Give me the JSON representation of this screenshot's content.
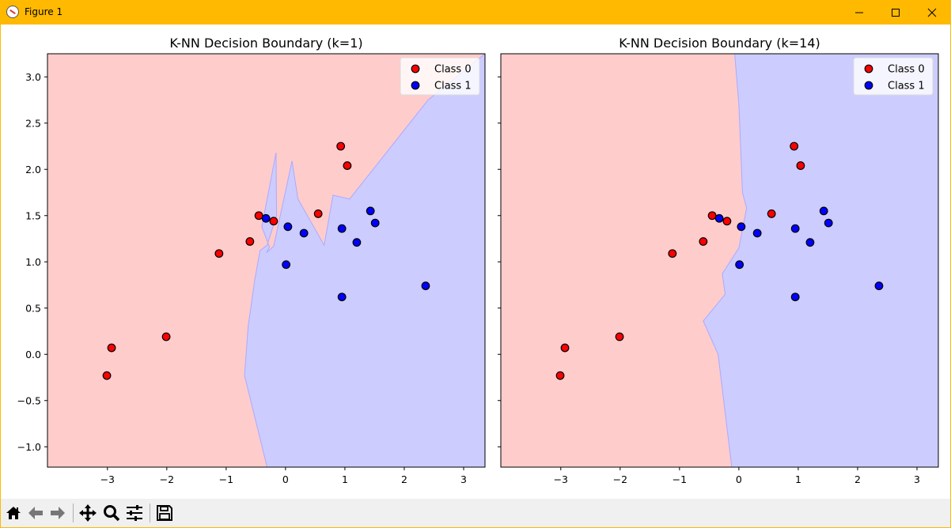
{
  "window": {
    "title": "Figure 1",
    "icon": "matplotlib-icon",
    "controls": [
      "minimize-icon",
      "maximize-icon",
      "close-icon"
    ]
  },
  "toolbar": {
    "buttons": [
      {
        "name": "home",
        "icon": "home-icon"
      },
      {
        "name": "back",
        "icon": "back-arrow-icon"
      },
      {
        "name": "forward",
        "icon": "forward-arrow-icon"
      },
      {
        "name": "pan",
        "icon": "move-icon"
      },
      {
        "name": "zoom",
        "icon": "magnifier-icon"
      },
      {
        "name": "configure-subplots",
        "icon": "sliders-icon"
      },
      {
        "name": "save",
        "icon": "floppy-disk-icon"
      }
    ]
  },
  "colors": {
    "class0_region": "#ffcccc",
    "class1_region": "#ccccff",
    "class0_point": "#ff0000",
    "class1_point": "#0000ff",
    "window_accent": "#ffb900"
  },
  "chart_data": [
    {
      "type": "scatter",
      "title": "K-NN Decision Boundary (k=1)",
      "xlabel": "",
      "ylabel": "",
      "xlim": [
        -4.01,
        3.36
      ],
      "ylim": [
        -1.22,
        3.25
      ],
      "xticks": [
        -3,
        -2,
        -1,
        0,
        1,
        2,
        3
      ],
      "xtick_labels": [
        "−3",
        "−2",
        "−1",
        "0",
        "1",
        "2",
        "3"
      ],
      "yticks": [
        -1.0,
        -0.5,
        0.0,
        0.5,
        1.0,
        1.5,
        2.0,
        2.5,
        3.0
      ],
      "ytick_labels": [
        "−1.0",
        "−0.5",
        "0.0",
        "0.5",
        "1.0",
        "1.5",
        "2.0",
        "2.5",
        "3.0"
      ],
      "grid": false,
      "legend": {
        "position": "top-right",
        "entries": [
          "Class 0",
          "Class 1"
        ]
      },
      "series": [
        {
          "name": "Class 0",
          "points": [
            [
              -3.01,
              -0.23
            ],
            [
              -2.93,
              0.07
            ],
            [
              -2.01,
              0.19
            ],
            [
              -1.12,
              1.09
            ],
            [
              -0.6,
              1.22
            ],
            [
              -0.45,
              1.5
            ],
            [
              -0.2,
              1.44
            ],
            [
              0.55,
              1.52
            ],
            [
              0.93,
              2.25
            ],
            [
              1.04,
              2.04
            ]
          ]
        },
        {
          "name": "Class 1",
          "points": [
            [
              -0.33,
              1.47
            ],
            [
              0.04,
              1.38
            ],
            [
              0.31,
              1.31
            ],
            [
              0.01,
              0.97
            ],
            [
              0.95,
              1.36
            ],
            [
              1.2,
              1.21
            ],
            [
              1.43,
              1.55
            ],
            [
              1.51,
              1.42
            ],
            [
              0.95,
              0.62
            ],
            [
              2.36,
              0.74
            ]
          ]
        }
      ],
      "class1_region": [
        [
          -0.31,
          -1.22
        ],
        [
          -0.69,
          -0.23
        ],
        [
          -0.63,
          0.3
        ],
        [
          -0.52,
          0.8
        ],
        [
          -0.43,
          1.12
        ],
        [
          -0.31,
          1.18
        ],
        [
          -0.15,
          1.5
        ],
        [
          -0.16,
          2.18
        ],
        [
          -0.4,
          1.38
        ],
        [
          -0.27,
          1.16
        ],
        [
          -0.32,
          1.1
        ],
        [
          -0.2,
          1.17
        ],
        [
          0.11,
          2.09
        ],
        [
          0.21,
          1.68
        ],
        [
          0.65,
          1.18
        ],
        [
          0.8,
          1.72
        ],
        [
          1.08,
          1.68
        ],
        [
          2.4,
          2.75
        ],
        [
          3.36,
          3.25
        ],
        [
          3.36,
          -1.22
        ]
      ]
    },
    {
      "type": "scatter",
      "title": "K-NN Decision Boundary (k=14)",
      "xlabel": "",
      "ylabel": "",
      "xlim": [
        -4.01,
        3.36
      ],
      "ylim": [
        -1.22,
        3.25
      ],
      "xticks": [
        -3,
        -2,
        -1,
        0,
        1,
        2,
        3
      ],
      "xtick_labels": [
        "−3",
        "−2",
        "−1",
        "0",
        "1",
        "2",
        "3"
      ],
      "yticks": [
        -1.0,
        -0.5,
        0.0,
        0.5,
        1.0,
        1.5,
        2.0,
        2.5,
        3.0
      ],
      "ytick_labels": [],
      "grid": false,
      "legend": {
        "position": "top-right",
        "entries": [
          "Class 0",
          "Class 1"
        ]
      },
      "series": [
        {
          "name": "Class 0",
          "points": [
            [
              -3.01,
              -0.23
            ],
            [
              -2.93,
              0.07
            ],
            [
              -2.01,
              0.19
            ],
            [
              -1.12,
              1.09
            ],
            [
              -0.6,
              1.22
            ],
            [
              -0.45,
              1.5
            ],
            [
              -0.2,
              1.44
            ],
            [
              0.55,
              1.52
            ],
            [
              0.93,
              2.25
            ],
            [
              1.04,
              2.04
            ]
          ]
        },
        {
          "name": "Class 1",
          "points": [
            [
              -0.33,
              1.47
            ],
            [
              0.04,
              1.38
            ],
            [
              0.31,
              1.31
            ],
            [
              0.01,
              0.97
            ],
            [
              0.95,
              1.36
            ],
            [
              1.2,
              1.21
            ],
            [
              1.43,
              1.55
            ],
            [
              1.51,
              1.42
            ],
            [
              0.95,
              0.62
            ],
            [
              2.36,
              0.74
            ]
          ]
        }
      ],
      "class1_region": [
        [
          -0.12,
          -1.22
        ],
        [
          -0.35,
          0.0
        ],
        [
          -0.6,
          0.36
        ],
        [
          -0.23,
          0.65
        ],
        [
          -0.28,
          0.87
        ],
        [
          0.0,
          1.15
        ],
        [
          0.13,
          1.58
        ],
        [
          0.06,
          1.75
        ],
        [
          0.0,
          2.7
        ],
        [
          -0.07,
          3.25
        ],
        [
          3.36,
          3.25
        ],
        [
          3.36,
          -1.22
        ]
      ]
    }
  ]
}
